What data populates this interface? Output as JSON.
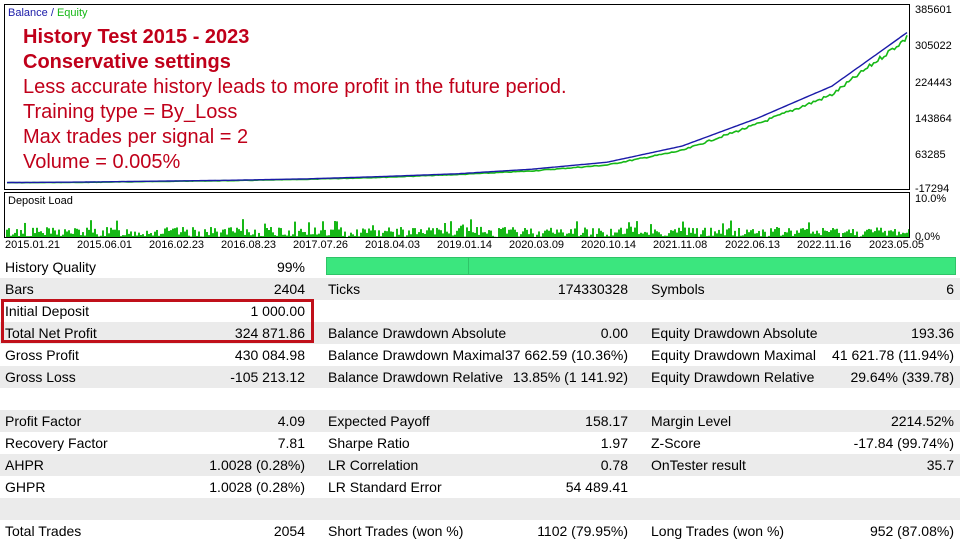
{
  "chart": {
    "legend_balance": "Balance",
    "legend_sep": " / ",
    "legend_equity": "Equity",
    "y_ticks": [
      "385601",
      "305022",
      "224443",
      "143864",
      "63285",
      "-17294"
    ],
    "x_ticks": [
      "2015.01.21",
      "2015.06.01",
      "2016.02.23",
      "2016.08.23",
      "2017.07.26",
      "2018.04.03",
      "2019.01.14",
      "2020.03.09",
      "2020.10.14",
      "2021.11.08",
      "2022.06.13",
      "2022.11.16",
      "2023.05.05"
    ],
    "load_title": "Deposit Load",
    "load_ticks": [
      "10.0%",
      "0.0%"
    ],
    "colors": {
      "balance": "#1a1aa8",
      "equity": "#16b816",
      "overlay": "#c0001a"
    }
  },
  "overlay": {
    "line1": "History Test 2015 - 2023",
    "line2": "Conservative settings",
    "line3": "Less accurate history leads to more profit in the future period.",
    "line4": "Training type = By_Loss",
    "line5": "Max trades per signal = 2",
    "line6": "Volume = 0.005%"
  },
  "chart_data": {
    "type": "line",
    "ylim": [
      -17294,
      385601
    ],
    "x": [
      "2015.01.21",
      "2015.06.01",
      "2016.02.23",
      "2016.08.23",
      "2017.07.26",
      "2018.04.03",
      "2019.01.14",
      "2020.03.09",
      "2020.10.14",
      "2021.11.08",
      "2022.06.13",
      "2022.11.16",
      "2023.05.05"
    ],
    "series": [
      {
        "name": "Balance",
        "values": [
          1000,
          2000,
          4000,
          6000,
          9000,
          14000,
          20000,
          30000,
          45000,
          80000,
          140000,
          210000,
          325872
        ]
      },
      {
        "name": "Equity",
        "values": [
          1000,
          1800,
          3800,
          5600,
          8500,
          13000,
          19000,
          27000,
          40000,
          72000,
          130000,
          195000,
          320000
        ]
      }
    ]
  },
  "stats": {
    "history_quality_label": "History Quality",
    "history_quality_value": "99%",
    "bars_label": "Bars",
    "bars_value": "2404",
    "ticks_label": "Ticks",
    "ticks_value": "174330328",
    "symbols_label": "Symbols",
    "symbols_value": "6",
    "initial_deposit_label": "Initial Deposit",
    "initial_deposit_value": "1 000.00",
    "net_profit_label": "Total Net Profit",
    "net_profit_value": "324 871.86",
    "bal_dd_abs_label": "Balance Drawdown Absolute",
    "bal_dd_abs_value": "0.00",
    "eq_dd_abs_label": "Equity Drawdown Absolute",
    "eq_dd_abs_value": "193.36",
    "gross_profit_label": "Gross Profit",
    "gross_profit_value": "430 084.98",
    "bal_dd_max_label": "Balance Drawdown Maximal",
    "bal_dd_max_value": "37 662.59 (10.36%)",
    "eq_dd_max_label": "Equity Drawdown Maximal",
    "eq_dd_max_value": "41 621.78 (11.94%)",
    "gross_loss_label": "Gross Loss",
    "gross_loss_value": "-105 213.12",
    "bal_dd_rel_label": "Balance Drawdown Relative",
    "bal_dd_rel_value": "13.85% (1 141.92)",
    "eq_dd_rel_label": "Equity Drawdown Relative",
    "eq_dd_rel_value": "29.64% (339.78)",
    "profit_factor_label": "Profit Factor",
    "profit_factor_value": "4.09",
    "expected_payoff_label": "Expected Payoff",
    "expected_payoff_value": "158.17",
    "margin_level_label": "Margin Level",
    "margin_level_value": "2214.52%",
    "recovery_factor_label": "Recovery Factor",
    "recovery_factor_value": "7.81",
    "sharpe_label": "Sharpe Ratio",
    "sharpe_value": "1.97",
    "zscore_label": "Z-Score",
    "zscore_value": "-17.84 (99.74%)",
    "ahpr_label": "AHPR",
    "ahpr_value": "1.0028 (0.28%)",
    "lr_corr_label": "LR Correlation",
    "lr_corr_value": "0.78",
    "ontester_label": "OnTester result",
    "ontester_value": "35.7",
    "ghpr_label": "GHPR",
    "ghpr_value": "1.0028 (0.28%)",
    "lr_se_label": "LR Standard Error",
    "lr_se_value": "54 489.41",
    "total_trades_label": "Total Trades",
    "total_trades_value": "2054",
    "short_trades_label": "Short Trades (won %)",
    "short_trades_value": "1102 (79.95%)",
    "long_trades_label": "Long Trades (won %)",
    "long_trades_value": "952 (87.08%)"
  }
}
